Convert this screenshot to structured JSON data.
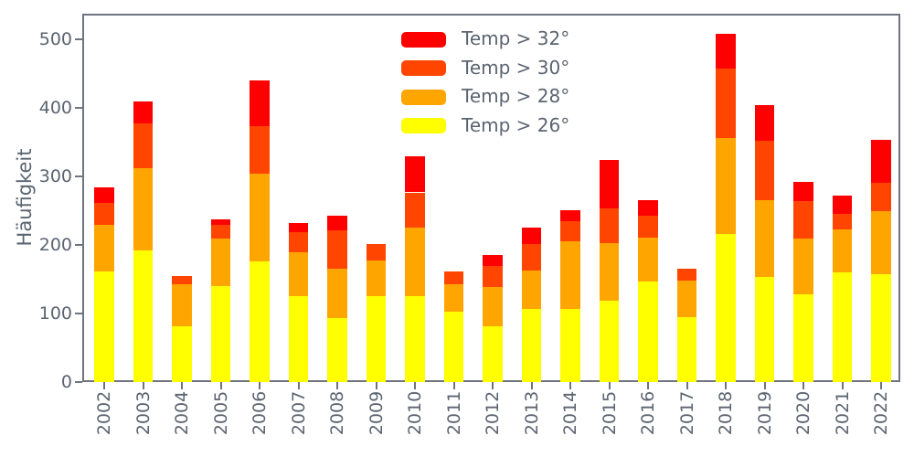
{
  "figure": {
    "background": "#ffffff",
    "spine_color": "#6e7580",
    "text_color": "#5b6470"
  },
  "chart_data": {
    "type": "bar",
    "stacked": true,
    "title": "",
    "xlabel": "",
    "ylabel": "Häufigkeit",
    "grid": false,
    "ylim": [
      0,
      538
    ],
    "yticks": [
      0,
      100,
      200,
      300,
      400,
      500
    ],
    "categories": [
      "2002",
      "2003",
      "2004",
      "2005",
      "2006",
      "2007",
      "2008",
      "2009",
      "2010",
      "2011",
      "2012",
      "2013",
      "2014",
      "2015",
      "2016",
      "2017",
      "2018",
      "2019",
      "2020",
      "2021",
      "2022"
    ],
    "series": [
      {
        "name": "Temp > 26°",
        "color": "#ffff00",
        "values": [
          162,
          192,
          82,
          140,
          176,
          125,
          93,
          125,
          125,
          103,
          81,
          107,
          107,
          119,
          147,
          95,
          216,
          153,
          128,
          160,
          158
        ]
      },
      {
        "name": "Temp > 28°",
        "color": "#ffa500",
        "values": [
          68,
          120,
          61,
          70,
          128,
          65,
          72,
          52,
          100,
          40,
          58,
          56,
          98,
          84,
          64,
          53,
          141,
          113,
          82,
          63,
          92
        ]
      },
      {
        "name": "Temp > 30°",
        "color": "#ff4500",
        "values": [
          32,
          66,
          12,
          20,
          70,
          29,
          56,
          25,
          52,
          19,
          30,
          38,
          30,
          50,
          32,
          17,
          101,
          86,
          54,
          23,
          41
        ]
      },
      {
        "name": "Temp > 32°",
        "color": "#ff0000",
        "values": [
          23,
          32,
          0,
          8,
          66,
          13,
          22,
          0,
          53,
          0,
          17,
          25,
          16,
          72,
          22,
          0,
          50,
          53,
          28,
          26,
          63
        ]
      }
    ],
    "totals": [
      285,
      410,
      155,
      238,
      440,
      232,
      243,
      202,
      330,
      162,
      186,
      226,
      251,
      325,
      265,
      165,
      508,
      405,
      292,
      272,
      354
    ],
    "legend": {
      "position": "upper center",
      "frame": false,
      "order_top_to_bottom": [
        "Temp > 32°",
        "Temp > 30°",
        "Temp > 28°",
        "Temp > 26°"
      ]
    }
  }
}
